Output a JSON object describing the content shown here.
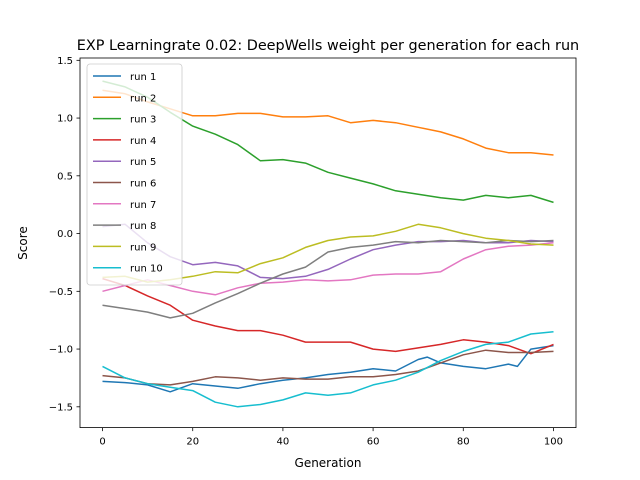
{
  "chart_data": {
    "type": "line",
    "title": "EXP Learningrate 0.02: DeepWells weight per generation for each run",
    "xlabel": "Generation",
    "ylabel": "Score",
    "xlim": [
      -5,
      105
    ],
    "ylim": [
      -1.68,
      1.52
    ],
    "xticks": [
      0,
      20,
      40,
      60,
      80,
      100
    ],
    "yticks": [
      -1.5,
      -1.0,
      -0.5,
      0.0,
      0.5,
      1.0,
      1.5
    ],
    "xtick_labels": [
      "0",
      "20",
      "40",
      "60",
      "80",
      "100"
    ],
    "ytick_labels": [
      "−1.5",
      "−1.0",
      "−0.5",
      "0.0",
      "0.5",
      "1.0",
      "1.5"
    ],
    "grid": false,
    "legend_position": "upper-left",
    "series": [
      {
        "name": "run 1",
        "color": "#1f77b4",
        "x": [
          0,
          5,
          10,
          15,
          20,
          25,
          30,
          35,
          40,
          45,
          50,
          55,
          60,
          65,
          70,
          72,
          75,
          80,
          85,
          90,
          92,
          95,
          100
        ],
        "y": [
          -1.28,
          -1.29,
          -1.31,
          -1.37,
          -1.3,
          -1.32,
          -1.34,
          -1.3,
          -1.27,
          -1.25,
          -1.22,
          -1.2,
          -1.17,
          -1.19,
          -1.09,
          -1.07,
          -1.12,
          -1.15,
          -1.17,
          -1.13,
          -1.15,
          -1.0,
          -0.97
        ]
      },
      {
        "name": "run 2",
        "color": "#ff7f0e",
        "x": [
          0,
          5,
          10,
          15,
          20,
          25,
          30,
          35,
          40,
          45,
          50,
          55,
          60,
          65,
          70,
          75,
          80,
          85,
          90,
          95,
          100
        ],
        "y": [
          1.24,
          1.21,
          1.14,
          1.08,
          1.02,
          1.02,
          1.04,
          1.04,
          1.01,
          1.01,
          1.02,
          0.96,
          0.98,
          0.96,
          0.92,
          0.88,
          0.82,
          0.74,
          0.7,
          0.7,
          0.68
        ]
      },
      {
        "name": "run 3",
        "color": "#2ca02c",
        "x": [
          0,
          5,
          10,
          15,
          20,
          25,
          30,
          35,
          40,
          45,
          50,
          55,
          60,
          65,
          70,
          75,
          80,
          85,
          90,
          95,
          100
        ],
        "y": [
          1.32,
          1.27,
          1.18,
          1.05,
          0.93,
          0.86,
          0.77,
          0.63,
          0.64,
          0.61,
          0.53,
          0.48,
          0.43,
          0.37,
          0.34,
          0.31,
          0.29,
          0.33,
          0.31,
          0.33,
          0.27
        ]
      },
      {
        "name": "run 4",
        "color": "#d62728",
        "x": [
          0,
          5,
          10,
          15,
          20,
          25,
          30,
          35,
          40,
          45,
          50,
          55,
          60,
          65,
          70,
          75,
          80,
          85,
          90,
          95,
          100
        ],
        "y": [
          -0.39,
          -0.45,
          -0.54,
          -0.62,
          -0.75,
          -0.8,
          -0.84,
          -0.84,
          -0.88,
          -0.94,
          -0.94,
          -0.94,
          -1.0,
          -1.02,
          -0.99,
          -0.96,
          -0.92,
          -0.94,
          -0.97,
          -1.04,
          -0.96
        ]
      },
      {
        "name": "run 5",
        "color": "#9467bd",
        "x": [
          0,
          5,
          10,
          15,
          20,
          25,
          30,
          35,
          40,
          45,
          50,
          55,
          60,
          65,
          70,
          75,
          80,
          85,
          90,
          95,
          100
        ],
        "y": [
          0.06,
          0.08,
          -0.08,
          -0.2,
          -0.27,
          -0.25,
          -0.28,
          -0.38,
          -0.39,
          -0.37,
          -0.31,
          -0.22,
          -0.14,
          -0.1,
          -0.07,
          -0.07,
          -0.06,
          -0.08,
          -0.08,
          -0.06,
          -0.07
        ]
      },
      {
        "name": "run 6",
        "color": "#8c564b",
        "x": [
          0,
          5,
          10,
          15,
          20,
          25,
          30,
          35,
          40,
          45,
          50,
          55,
          60,
          65,
          70,
          75,
          80,
          85,
          90,
          95,
          100
        ],
        "y": [
          -1.23,
          -1.25,
          -1.3,
          -1.31,
          -1.28,
          -1.24,
          -1.25,
          -1.27,
          -1.25,
          -1.26,
          -1.26,
          -1.24,
          -1.24,
          -1.22,
          -1.19,
          -1.12,
          -1.05,
          -1.01,
          -1.03,
          -1.03,
          -1.02
        ]
      },
      {
        "name": "run 7",
        "color": "#e377c2",
        "x": [
          0,
          5,
          10,
          15,
          20,
          25,
          30,
          35,
          40,
          45,
          50,
          55,
          60,
          65,
          70,
          75,
          80,
          85,
          90,
          95,
          100
        ],
        "y": [
          -0.5,
          -0.45,
          -0.4,
          -0.45,
          -0.5,
          -0.53,
          -0.47,
          -0.43,
          -0.42,
          -0.4,
          -0.41,
          -0.4,
          -0.36,
          -0.35,
          -0.35,
          -0.33,
          -0.22,
          -0.14,
          -0.11,
          -0.1,
          -0.08
        ]
      },
      {
        "name": "run 8",
        "color": "#7f7f7f",
        "x": [
          0,
          5,
          10,
          15,
          20,
          25,
          30,
          35,
          40,
          45,
          50,
          55,
          60,
          65,
          70,
          75,
          80,
          85,
          90,
          95,
          100
        ],
        "y": [
          -0.62,
          -0.65,
          -0.68,
          -0.73,
          -0.69,
          -0.6,
          -0.52,
          -0.43,
          -0.35,
          -0.29,
          -0.16,
          -0.12,
          -0.1,
          -0.07,
          -0.08,
          -0.06,
          -0.07,
          -0.08,
          -0.06,
          -0.07,
          -0.06
        ]
      },
      {
        "name": "run 9",
        "color": "#bcbd22",
        "x": [
          0,
          5,
          10,
          15,
          20,
          25,
          30,
          35,
          40,
          45,
          50,
          55,
          60,
          65,
          70,
          75,
          80,
          85,
          90,
          95,
          100
        ],
        "y": [
          -0.38,
          -0.37,
          -0.42,
          -0.4,
          -0.37,
          -0.33,
          -0.34,
          -0.26,
          -0.21,
          -0.12,
          -0.06,
          -0.03,
          -0.02,
          0.02,
          0.08,
          0.05,
          0.0,
          -0.04,
          -0.06,
          -0.09,
          -0.1
        ]
      },
      {
        "name": "run 10",
        "color": "#17becf",
        "x": [
          0,
          5,
          10,
          15,
          20,
          25,
          30,
          35,
          40,
          45,
          50,
          55,
          60,
          65,
          70,
          75,
          80,
          85,
          90,
          95,
          100
        ],
        "y": [
          -1.15,
          -1.25,
          -1.3,
          -1.33,
          -1.36,
          -1.46,
          -1.5,
          -1.48,
          -1.44,
          -1.38,
          -1.4,
          -1.38,
          -1.31,
          -1.27,
          -1.2,
          -1.1,
          -1.02,
          -0.96,
          -0.94,
          -0.87,
          -0.85
        ]
      }
    ]
  }
}
